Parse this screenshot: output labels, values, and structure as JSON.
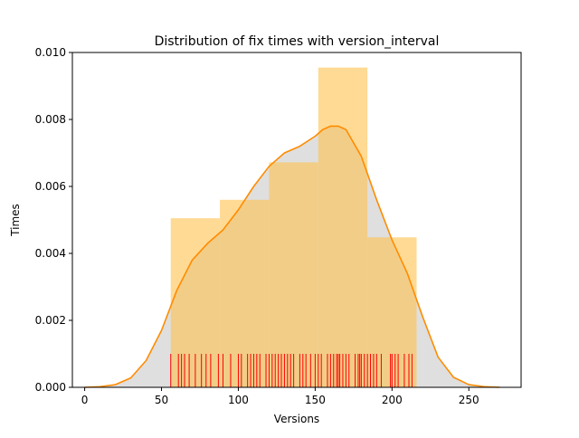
{
  "chart_data": {
    "type": "bar",
    "title": "Distribution of fix times with version_interval",
    "xlabel": "Versions",
    "ylabel": "Times",
    "xlim": [
      -8,
      284
    ],
    "ylim": [
      0,
      0.01
    ],
    "xticks": [
      0,
      50,
      100,
      150,
      200,
      250
    ],
    "yticks": [
      0.0,
      0.002,
      0.004,
      0.006,
      0.008,
      0.01
    ],
    "ytick_labels": [
      "0.000",
      "0.002",
      "0.004",
      "0.006",
      "0.008",
      "0.010"
    ],
    "grid": false,
    "legend": "none",
    "histogram": {
      "bin_edges": [
        56,
        88,
        120,
        152,
        184,
        216
      ],
      "density": [
        0.00505,
        0.0056,
        0.00672,
        0.00955,
        0.00448
      ],
      "color": "#ffc24d"
    },
    "kde": {
      "x": [
        0,
        10,
        20,
        30,
        40,
        50,
        60,
        70,
        80,
        90,
        100,
        110,
        120,
        130,
        140,
        150,
        155,
        160,
        165,
        170,
        180,
        190,
        200,
        210,
        220,
        230,
        240,
        250,
        260,
        270
      ],
      "y": [
        0.0,
        2e-05,
        8e-05,
        0.00028,
        0.0008,
        0.0017,
        0.0029,
        0.0038,
        0.0043,
        0.0047,
        0.0053,
        0.006,
        0.0066,
        0.007,
        0.0072,
        0.0075,
        0.0077,
        0.0078,
        0.0078,
        0.0077,
        0.0069,
        0.0056,
        0.0044,
        0.0034,
        0.0021,
        0.0009,
        0.0003,
        8e-05,
        2e-05,
        0.0
      ],
      "line_color": "#ff8c00",
      "fill_color": "#dfdfdf"
    },
    "rug": {
      "x": [
        56,
        61,
        63,
        65,
        68,
        72,
        76,
        79,
        82,
        87,
        90,
        95,
        100,
        102,
        106,
        108,
        110,
        112,
        114,
        118,
        120,
        122,
        124,
        126,
        128,
        130,
        132,
        134,
        136,
        140,
        142,
        144,
        147,
        150,
        152,
        154,
        158,
        160,
        162,
        164,
        165,
        166,
        168,
        170,
        172,
        176,
        178,
        179,
        180,
        182,
        184,
        186,
        188,
        190,
        193,
        199,
        200,
        202,
        204,
        208,
        211,
        213
      ],
      "height": 0.001,
      "color": "#ff0000"
    }
  }
}
